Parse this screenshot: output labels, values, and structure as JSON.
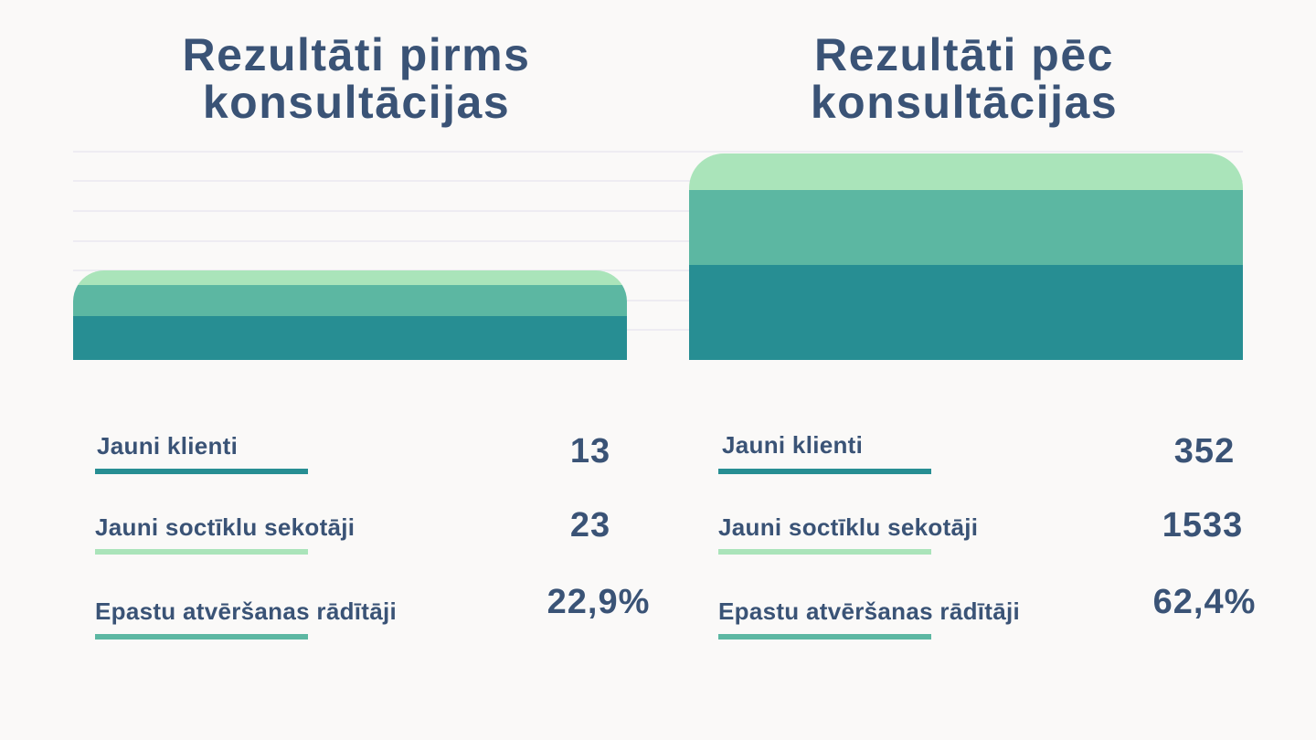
{
  "colors": {
    "text": "#3a5376",
    "gridline": "#e6e5ef",
    "series_1": "#278e93",
    "series_2": "#5cb7a2",
    "series_3": "#aae4ba"
  },
  "chart_data": [
    {
      "type": "bar",
      "title": "Rezultāti pirms konsultācijas",
      "stacked": true,
      "categories": [
        "Rezultāti pirms konsultācijas"
      ],
      "series": [
        {
          "name": "Jauni klienti",
          "values": [
            13
          ],
          "color": "#278e93"
        },
        {
          "name": "Jauni soctīklu sekotāji",
          "values": [
            23
          ],
          "color": "#5cb7a2"
        },
        {
          "name": "Epastu atvēršanas rādītāji",
          "values": [
            22.9
          ],
          "color": "#aae4ba"
        }
      ],
      "value_labels": [
        "13",
        "23",
        "22,9%"
      ],
      "grid": true
    },
    {
      "type": "bar",
      "title": "Rezultāti pēc konsultācijas",
      "stacked": true,
      "categories": [
        "Rezultāti pēc konsultācijas"
      ],
      "series": [
        {
          "name": "Jauni klienti",
          "values": [
            352
          ],
          "color": "#278e93"
        },
        {
          "name": "Jauni soctīklu sekotāji",
          "values": [
            1533
          ],
          "color": "#5cb7a2"
        },
        {
          "name": "Epastu atvēršanas rādītāji",
          "values": [
            62.4
          ],
          "color": "#aae4ba"
        }
      ],
      "value_labels": [
        "352",
        "1533",
        "62,4%"
      ],
      "grid": true
    }
  ],
  "panels": {
    "before": {
      "title": "Rezultāti pirms konsultācijas",
      "rows": [
        {
          "label": "Jauni klienti",
          "value": "13"
        },
        {
          "label": "Jauni soctīklu sekotāji",
          "value": "23"
        },
        {
          "label": "Epastu atvēršanas rādītāji",
          "value": "22,9%"
        }
      ]
    },
    "after": {
      "title": "Rezultāti pēc konsultācijas",
      "rows": [
        {
          "label": "Jauni klienti",
          "value": "352"
        },
        {
          "label": "Jauni soctīklu sekotāji",
          "value": "1533"
        },
        {
          "label": "Epastu atvēršanas rādītāji",
          "value": "62,4%"
        }
      ]
    }
  }
}
